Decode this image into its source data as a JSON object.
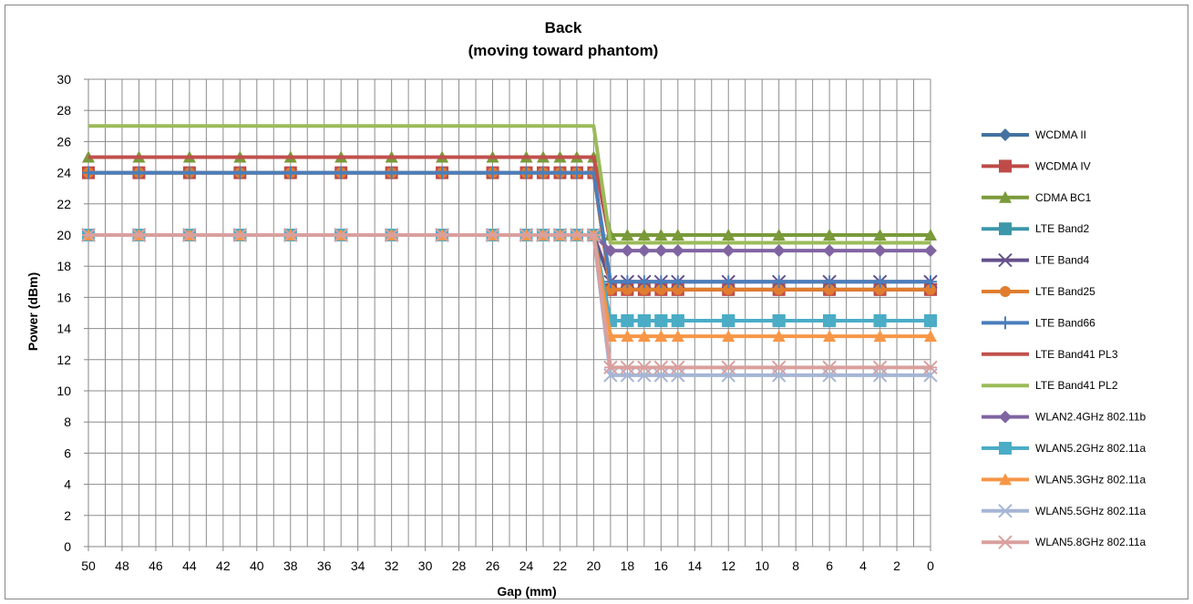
{
  "chart_data": {
    "type": "line",
    "title": "Back",
    "subtitle": "(moving toward phantom)",
    "xlabel": "Gap (mm)",
    "ylabel": "Power (dBm)",
    "x": [
      50,
      47,
      44,
      41,
      38,
      35,
      32,
      29,
      26,
      24,
      23,
      22,
      21,
      20,
      19,
      18,
      17,
      16,
      15,
      12,
      9,
      6,
      3,
      0
    ],
    "x_ticks": [
      50,
      48,
      46,
      44,
      42,
      40,
      38,
      36,
      34,
      32,
      30,
      28,
      26,
      24,
      22,
      20,
      18,
      16,
      14,
      12,
      10,
      8,
      6,
      4,
      2,
      0
    ],
    "x_reversed": true,
    "xlim": [
      50,
      0
    ],
    "ylim": [
      0,
      30
    ],
    "y_ticks": [
      0,
      2,
      4,
      6,
      8,
      10,
      12,
      14,
      16,
      18,
      20,
      22,
      24,
      26,
      28,
      30
    ],
    "grid": true,
    "legend_position": "right",
    "series": [
      {
        "name": "WCDMA II",
        "color": "#4472a0",
        "marker": "diamond",
        "near": 24,
        "far": 16.5
      },
      {
        "name": "WCDMA IV",
        "color": "#be4b48",
        "marker": "square",
        "near": 24,
        "far": 16.5
      },
      {
        "name": "CDMA BC1",
        "color": "#7a9a3a",
        "marker": "triangle",
        "near": 25,
        "far": 20
      },
      {
        "name": "LTE Band2",
        "color": "#3c97a9",
        "marker": "square",
        "near": 20,
        "far": 14.5
      },
      {
        "name": "LTE Band4",
        "color": "#65508c",
        "marker": "x",
        "near": 20,
        "far": 17
      },
      {
        "name": "LTE Band25",
        "color": "#e07d2f",
        "marker": "circle",
        "near": 24,
        "far": 16.5
      },
      {
        "name": "LTE Band66",
        "color": "#4a7ebb",
        "marker": "plus",
        "near": 24,
        "far": 17
      },
      {
        "name": "LTE Band41 PL3",
        "color": "#c0504d",
        "marker": "none",
        "near": 25,
        "far": 19.5
      },
      {
        "name": "LTE Band41 PL2",
        "color": "#9bbb59",
        "marker": "none",
        "near": 27,
        "far": 19.5
      },
      {
        "name": "WLAN2.4GHz 802.11b",
        "color": "#8064a2",
        "marker": "diamond",
        "near": 20,
        "far": 19
      },
      {
        "name": "WLAN5.2GHz 802.11a",
        "color": "#4bacc6",
        "marker": "square",
        "near": 20,
        "far": 14.5
      },
      {
        "name": "WLAN5.3GHz 802.11a",
        "color": "#f79646",
        "marker": "triangle",
        "near": 20,
        "far": 13.5
      },
      {
        "name": "WLAN5.5GHz 802.11a",
        "color": "#a5b5d5",
        "marker": "x",
        "near": 20,
        "far": 11
      },
      {
        "name": "WLAN5.8GHz 802.11a",
        "color": "#d9a09e",
        "marker": "star",
        "near": 20,
        "far": 11.5
      }
    ]
  }
}
